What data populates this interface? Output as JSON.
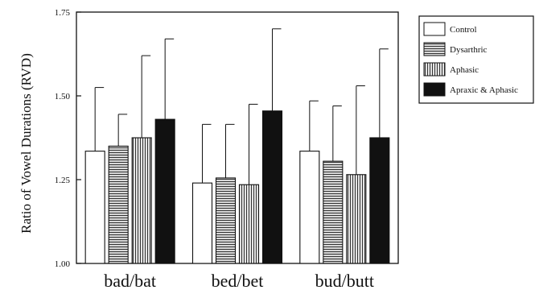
{
  "chart_data": {
    "type": "bar",
    "ylabel": "Ratio of Vowel Durations (RVD)",
    "xlabel": "",
    "ylim": [
      1.0,
      1.75
    ],
    "yticks": [
      "1.00",
      "1.25",
      "1.50",
      "1.75"
    ],
    "categories": [
      "bad/bat",
      "bed/bet",
      "bud/butt"
    ],
    "legend_position": "right",
    "series": [
      {
        "name": "Control",
        "fill": "white",
        "values": [
          1.335,
          1.24,
          1.335
        ],
        "error": [
          0.19,
          0.175,
          0.15
        ]
      },
      {
        "name": "Dysarthric",
        "fill": "horizontal-stripes",
        "values": [
          1.35,
          1.255,
          1.305
        ],
        "error": [
          0.095,
          0.16,
          0.165
        ]
      },
      {
        "name": "Aphasic",
        "fill": "vertical-stripes",
        "values": [
          1.375,
          1.235,
          1.265
        ],
        "error": [
          0.245,
          0.24,
          0.265
        ]
      },
      {
        "name": "Apraxic & Aphasic",
        "fill": "black",
        "values": [
          1.43,
          1.455,
          1.375
        ],
        "error": [
          0.24,
          0.245,
          0.265
        ]
      }
    ]
  }
}
